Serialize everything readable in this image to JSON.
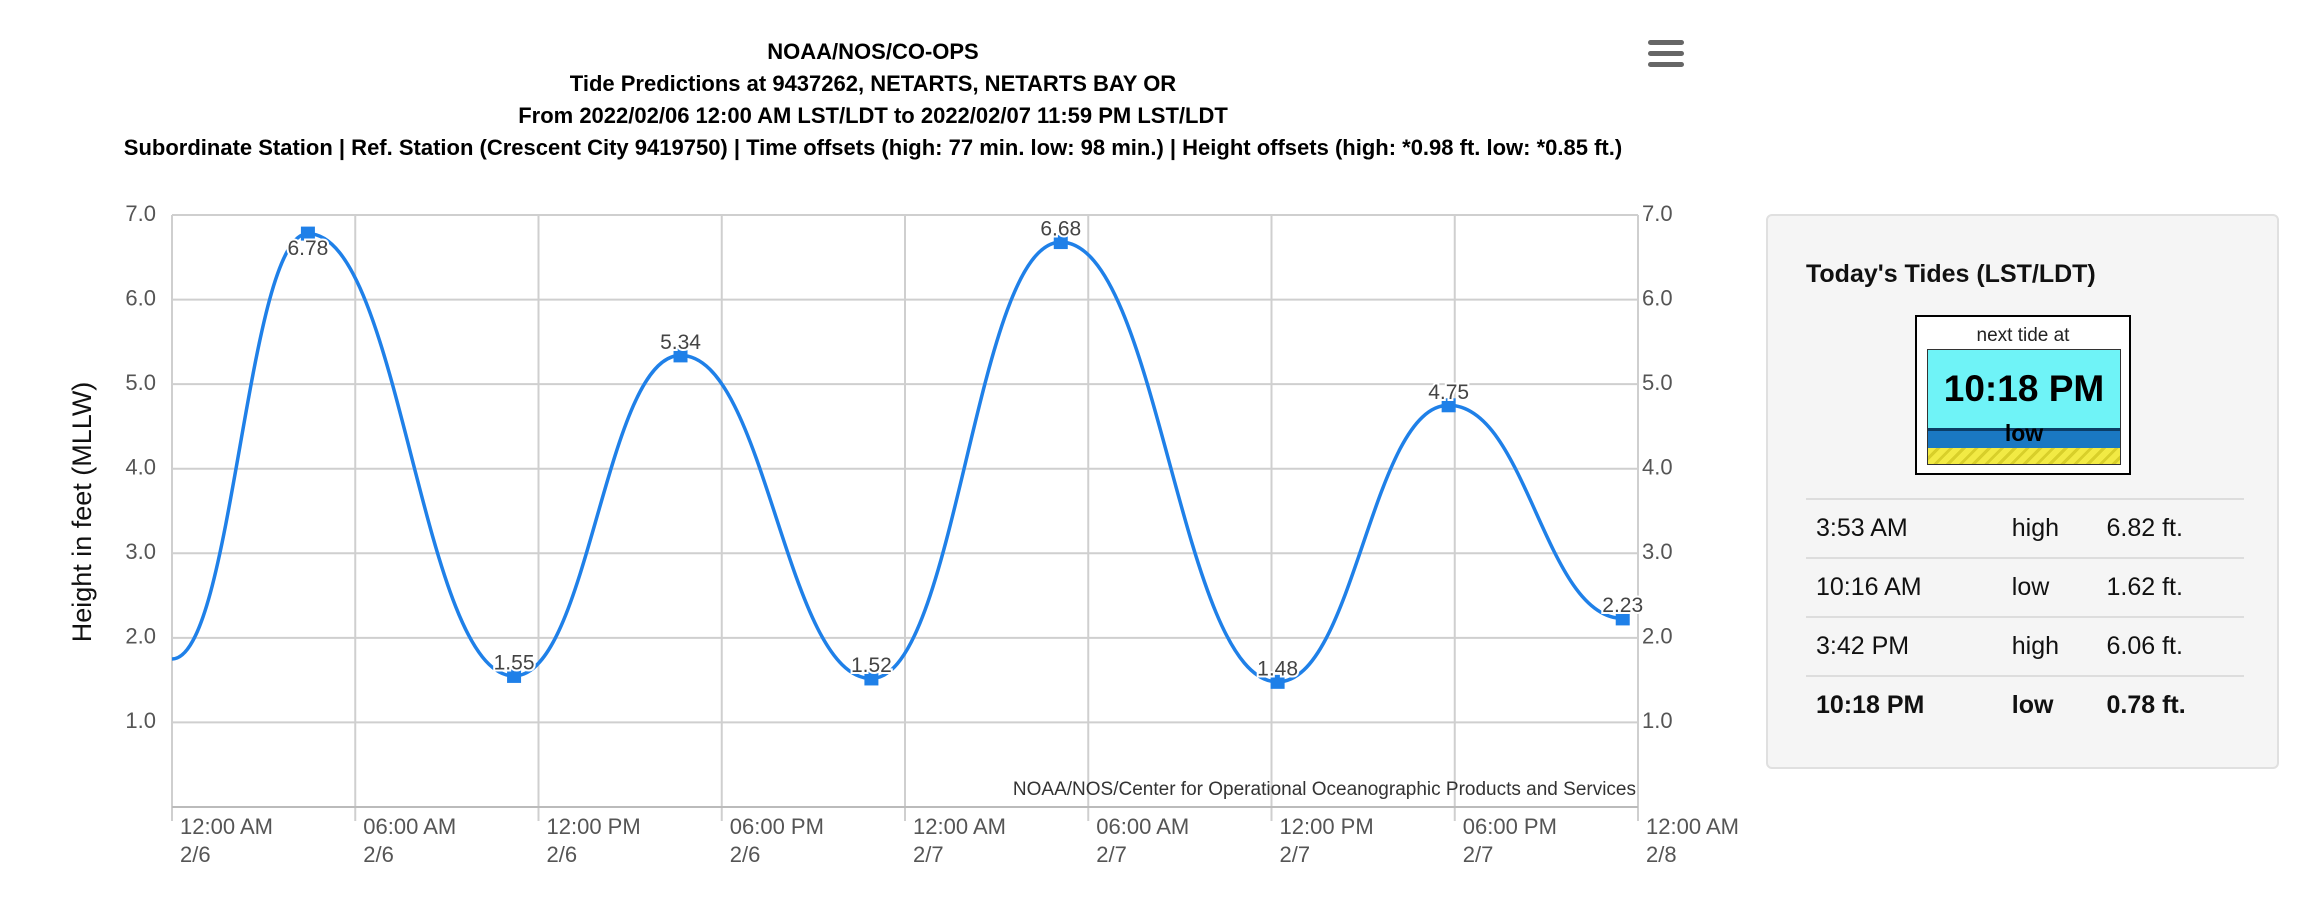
{
  "chart_data": {
    "type": "line",
    "title": "NOAA/NOS/CO-OPS",
    "subtitle": [
      "Tide Predictions at 9437262, NETARTS, NETARTS BAY OR",
      "From 2022/02/06 12:00 AM LST/LDT to 2022/02/07 11:59 PM LST/LDT",
      "Subordinate Station | Ref. Station (Crescent City 9419750) | Time offsets (high: 77 min. low: 98 min.) | Height offsets (high: *0.98 ft. low: *0.85 ft.)"
    ],
    "ylabel": "Height in feet (MLLW)",
    "credit": "NOAA/NOS/Center for Operational Oceanographic Products and Services",
    "color": "#1f80e8",
    "x": [
      0,
      4.45,
      11.2,
      16.65,
      22.9,
      29.1,
      36.2,
      41.8,
      47.5
    ],
    "values": [
      1.75,
      6.78,
      1.55,
      5.34,
      1.52,
      6.68,
      1.48,
      4.75,
      2.23
    ],
    "value_labels": [
      null,
      "6.78",
      "1.55",
      "5.34",
      "1.52",
      "6.68",
      "1.48",
      "4.75",
      "2.23"
    ],
    "xlim": [
      0,
      48
    ],
    "xticks": [
      {
        "value": 0,
        "label": [
          "12:00 AM",
          "2/6"
        ]
      },
      {
        "value": 6,
        "label": [
          "06:00 AM",
          "2/6"
        ]
      },
      {
        "value": 12,
        "label": [
          "12:00 PM",
          "2/6"
        ]
      },
      {
        "value": 18,
        "label": [
          "06:00 PM",
          "2/6"
        ]
      },
      {
        "value": 24,
        "label": [
          "12:00 AM",
          "2/7"
        ]
      },
      {
        "value": 30,
        "label": [
          "06:00 AM",
          "2/7"
        ]
      },
      {
        "value": 36,
        "label": [
          "12:00 PM",
          "2/7"
        ]
      },
      {
        "value": 42,
        "label": [
          "06:00 PM",
          "2/7"
        ]
      },
      {
        "value": 48,
        "label": [
          "12:00 AM",
          "2/8"
        ]
      }
    ],
    "ylim": [
      0,
      7
    ],
    "yticks": [
      {
        "value": 1,
        "label": "1.0"
      },
      {
        "value": 2,
        "label": "2.0"
      },
      {
        "value": 3,
        "label": "3.0"
      },
      {
        "value": 4,
        "label": "4.0"
      },
      {
        "value": 5,
        "label": "5.0"
      },
      {
        "value": 6,
        "label": "6.0"
      },
      {
        "value": 7,
        "label": "7.0"
      }
    ],
    "y2lim": [
      0,
      7
    ],
    "y2ticks": [
      {
        "value": 1,
        "label": "1.0"
      },
      {
        "value": 2,
        "label": "2.0"
      },
      {
        "value": 3,
        "label": "3.0"
      },
      {
        "value": 4,
        "label": "4.0"
      },
      {
        "value": 5,
        "label": "5.0"
      },
      {
        "value": 6,
        "label": "6.0"
      },
      {
        "value": 7,
        "label": "7.0"
      }
    ],
    "grid": true
  },
  "tides_panel": {
    "title": "Today's Tides (LST/LDT)",
    "widget": {
      "caption": "next tide at",
      "time": "10:18 PM",
      "type": "low"
    },
    "rows": [
      [
        "3:53 AM",
        "high",
        "6.82 ft."
      ],
      [
        "10:16 AM",
        "low",
        "1.62 ft."
      ],
      [
        "3:42 PM",
        "high",
        "6.06 ft."
      ],
      [
        "10:18 PM",
        "low",
        "0.78 ft."
      ]
    ]
  }
}
